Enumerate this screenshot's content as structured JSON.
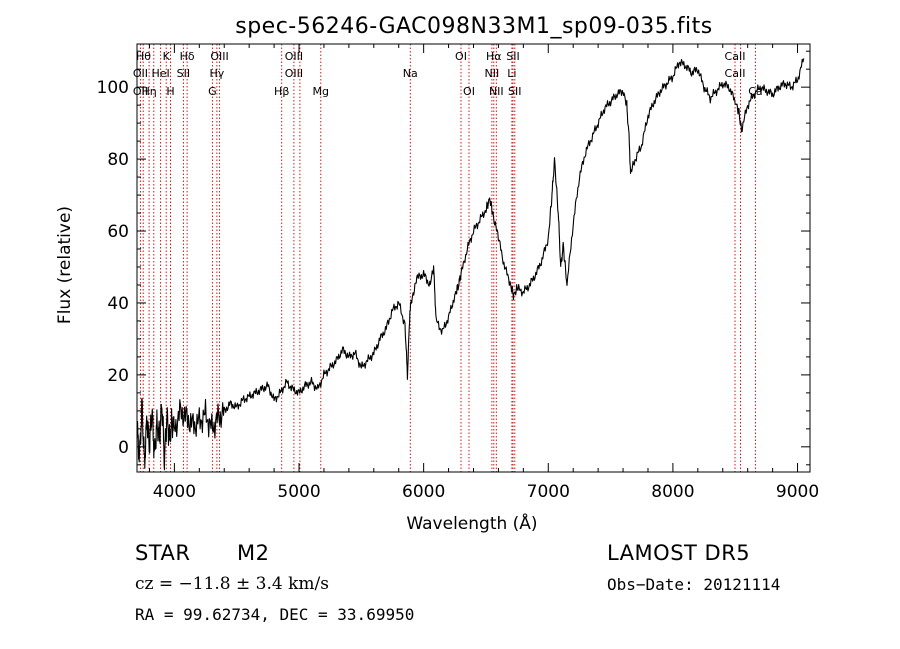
{
  "chart_data": {
    "type": "line",
    "title": "spec-56246-GAC098N33M1_sp09-035.fits",
    "xlabel": "Wavelength (Å)",
    "ylabel": "Flux (relative)",
    "xlim": [
      3700,
      9100
    ],
    "ylim": [
      -7,
      112
    ],
    "xticks": [
      4000,
      5000,
      6000,
      7000,
      8000,
      9000
    ],
    "yticks": [
      0,
      20,
      40,
      60,
      80,
      100
    ],
    "grid": false,
    "series": [
      {
        "x": [
          3700,
          3720,
          3740,
          3760,
          3780,
          3800,
          3820,
          3840,
          3860,
          3880,
          3900,
          3920,
          3940,
          3960,
          3980,
          4000,
          4050,
          4100,
          4150,
          4200,
          4250,
          4300,
          4350,
          4400,
          4450,
          4500,
          4550,
          4600,
          4650,
          4700,
          4750,
          4800,
          4850,
          4900,
          4950,
          5000,
          5050,
          5100,
          5150,
          5200,
          5250,
          5300,
          5350,
          5400,
          5450,
          5500,
          5550,
          5600,
          5650,
          5700,
          5750,
          5800,
          5850,
          5870,
          5890,
          5910,
          5950,
          6000,
          6050,
          6080,
          6100,
          6150,
          6200,
          6250,
          6280,
          6300,
          6350,
          6400,
          6450,
          6500,
          6530,
          6560,
          6600,
          6650,
          6700,
          6720,
          6750,
          6800,
          6850,
          6900,
          6950,
          7000,
          7030,
          7050,
          7080,
          7100,
          7120,
          7150,
          7200,
          7250,
          7300,
          7350,
          7400,
          7450,
          7500,
          7550,
          7600,
          7630,
          7650,
          7660,
          7700,
          7750,
          7800,
          7850,
          7900,
          7950,
          8000,
          8050,
          8100,
          8150,
          8200,
          8250,
          8300,
          8350,
          8400,
          8450,
          8500,
          8530,
          8550,
          8600,
          8650,
          8700,
          8750,
          8800,
          8850,
          8900,
          8950,
          9000,
          9050
        ],
        "y": [
          5,
          -3,
          12,
          -5,
          8,
          0,
          10,
          -2,
          6,
          3,
          12,
          -4,
          9,
          2,
          7,
          5,
          10,
          8,
          6,
          7,
          9,
          5,
          8,
          10,
          12,
          11,
          13,
          14,
          15,
          16,
          17,
          13,
          15,
          18,
          16,
          15,
          17,
          18,
          16,
          20,
          22,
          24,
          27,
          25,
          26,
          22,
          24,
          26,
          30,
          33,
          38,
          40,
          34,
          20,
          38,
          42,
          47,
          48,
          45,
          50,
          35,
          32,
          36,
          42,
          45,
          48,
          55,
          60,
          63,
          66,
          69,
          64,
          58,
          50,
          45,
          42,
          44,
          43,
          45,
          48,
          52,
          58,
          70,
          80,
          65,
          50,
          56,
          45,
          62,
          75,
          82,
          86,
          90,
          94,
          96,
          98,
          99,
          95,
          85,
          76,
          80,
          84,
          92,
          96,
          99,
          101,
          103,
          107,
          106,
          104,
          105,
          100,
          97,
          99,
          101,
          100,
          96,
          93,
          88,
          95,
          98,
          100,
          99,
          98,
          100,
          101,
          100,
          102,
          108
        ]
      }
    ],
    "lines": [
      {
        "x": 3727,
        "labels": [
          "OII"
        ]
      },
      {
        "x": 3750,
        "labels": [
          "Hθ"
        ]
      },
      {
        "x": 3797,
        "labels": [
          "Hη"
        ]
      },
      {
        "x": 3835,
        "labels": []
      },
      {
        "x": 3889,
        "labels": [
          "HeI"
        ]
      },
      {
        "x": 3934,
        "labels": [
          "K"
        ]
      },
      {
        "x": 3969,
        "labels": [
          "H"
        ]
      },
      {
        "x": 4072,
        "labels": [
          "SII"
        ]
      },
      {
        "x": 4102,
        "labels": [
          "Hδ"
        ]
      },
      {
        "x": 4305,
        "labels": [
          "G"
        ]
      },
      {
        "x": 4341,
        "labels": [
          "Hγ"
        ]
      },
      {
        "x": 4363,
        "labels": [
          "OIII"
        ]
      },
      {
        "x": 4861,
        "labels": [
          "Hβ"
        ]
      },
      {
        "x": 4959,
        "labels": [
          "OIII"
        ]
      },
      {
        "x": 5007,
        "labels": [
          "OIII"
        ]
      },
      {
        "x": 5175,
        "labels": [
          "Mg"
        ]
      },
      {
        "x": 5893,
        "labels": [
          "Na"
        ]
      },
      {
        "x": 6300,
        "labels": [
          "OI"
        ]
      },
      {
        "x": 6364,
        "labels": [
          "OI"
        ]
      },
      {
        "x": 6548,
        "labels": [
          "NII"
        ]
      },
      {
        "x": 6563,
        "labels": [
          "Hα"
        ]
      },
      {
        "x": 6583,
        "labels": [
          "NII"
        ]
      },
      {
        "x": 6708,
        "labels": [
          "Li"
        ]
      },
      {
        "x": 6717,
        "labels": [
          "SII"
        ]
      },
      {
        "x": 6731,
        "labels": [
          "SII"
        ]
      },
      {
        "x": 8498,
        "labels": [
          "CaII"
        ]
      },
      {
        "x": 8542,
        "labels": [
          "CaII"
        ]
      },
      {
        "x": 8662,
        "labels": [
          "CaII"
        ]
      }
    ],
    "line_label_items": [
      {
        "text": "Hθ",
        "x": 3752,
        "row": 0
      },
      {
        "text": "K",
        "x": 3934,
        "row": 0
      },
      {
        "text": "Hδ",
        "x": 4102,
        "row": 0
      },
      {
        "text": "OIII",
        "x": 4363,
        "row": 0
      },
      {
        "text": "OIII",
        "x": 4959,
        "row": 0
      },
      {
        "text": "OI",
        "x": 6300,
        "row": 0
      },
      {
        "text": "Hα",
        "x": 6563,
        "row": 0
      },
      {
        "text": "SII",
        "x": 6717,
        "row": 0
      },
      {
        "text": "CaII",
        "x": 8498,
        "row": 0
      },
      {
        "text": "OII",
        "x": 3727,
        "row": 1
      },
      {
        "text": "HeI",
        "x": 3889,
        "row": 1
      },
      {
        "text": "SII",
        "x": 4072,
        "row": 1
      },
      {
        "text": "Hγ",
        "x": 4341,
        "row": 1
      },
      {
        "text": "OIII",
        "x": 4959,
        "row": 1
      },
      {
        "text": "Na",
        "x": 5893,
        "row": 1
      },
      {
        "text": "NII",
        "x": 6548,
        "row": 1
      },
      {
        "text": "Li",
        "x": 6708,
        "row": 1
      },
      {
        "text": "CaII",
        "x": 8498,
        "row": 1
      },
      {
        "text": "OII",
        "x": 3727,
        "row": 2
      },
      {
        "text": "Hη",
        "x": 3797,
        "row": 2
      },
      {
        "text": "H",
        "x": 3969,
        "row": 2
      },
      {
        "text": "G",
        "x": 4305,
        "row": 2
      },
      {
        "text": "Hβ",
        "x": 4861,
        "row": 2
      },
      {
        "text": "Mg",
        "x": 5175,
        "row": 2
      },
      {
        "text": "OI",
        "x": 6364,
        "row": 2
      },
      {
        "text": "NII",
        "x": 6583,
        "row": 2
      },
      {
        "text": "SII",
        "x": 6731,
        "row": 2
      },
      {
        "text": "Ca",
        "x": 8662,
        "row": 2
      }
    ]
  },
  "info": {
    "object_type": "STAR",
    "subclass": "M2",
    "survey": "LAMOST DR5",
    "cz": "cz = −11.8 ± 3.4 km/s",
    "obs_date": "Obs−Date: 20121114",
    "coords": "RA =  99.62734, DEC =  33.69950"
  },
  "colors": {
    "spectrum": "#000000",
    "line_markers": "#cc0000",
    "axes": "#000000"
  }
}
